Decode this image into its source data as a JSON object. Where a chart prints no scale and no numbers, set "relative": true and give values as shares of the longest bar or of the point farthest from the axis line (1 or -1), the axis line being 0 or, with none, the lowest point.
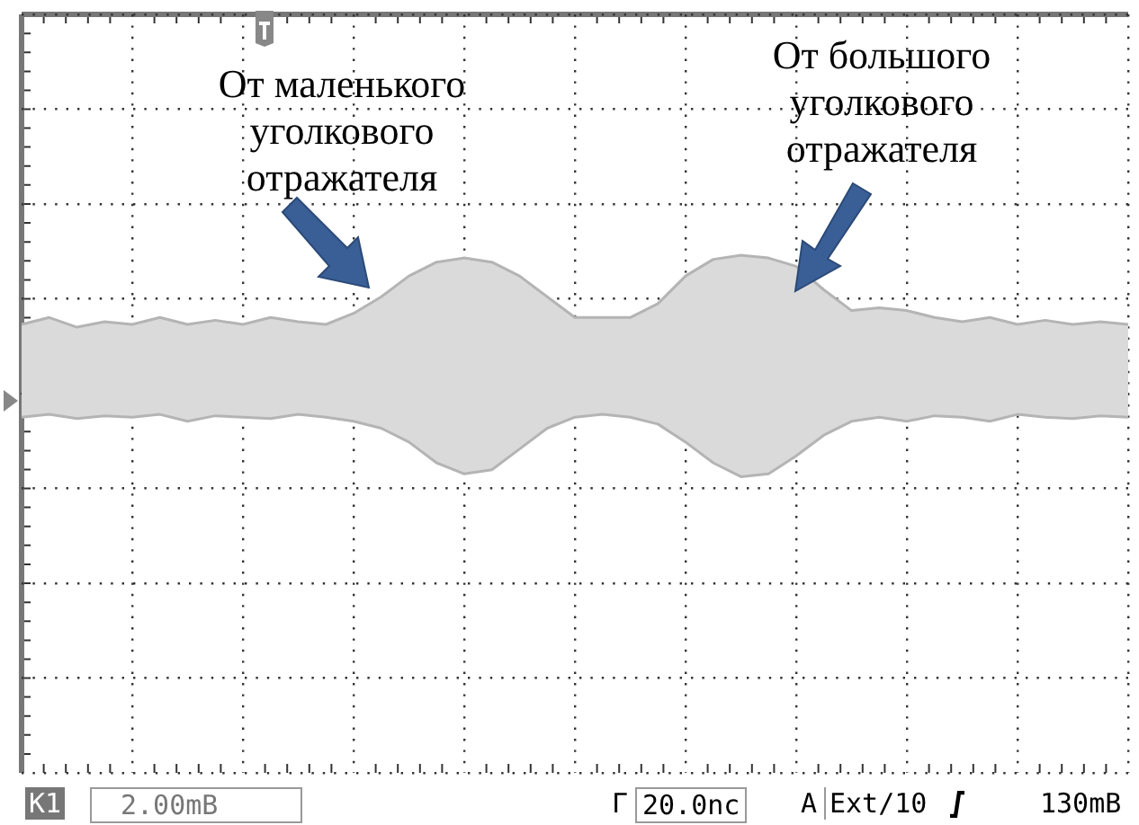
{
  "chart_data": {
    "type": "area",
    "relative": true,
    "grid": true,
    "legend": false,
    "marker": "none",
    "categories": [
      null,
      null,
      null,
      null,
      null,
      null,
      null,
      null,
      null,
      null,
      null,
      null,
      null,
      null,
      null,
      null,
      null,
      null,
      null,
      null,
      null,
      null,
      null,
      null,
      null,
      null,
      null,
      null,
      null,
      null,
      null,
      null,
      null,
      null,
      null,
      null,
      null,
      null,
      null,
      null,
      null
    ],
    "series": [
      {
        "color": "#b4b4b4",
        "values": [
          0.5,
          0.55,
          0.48,
          0.52,
          0.5,
          0.55,
          0.5,
          0.53,
          0.5,
          0.55,
          0.52,
          0.5,
          0.58,
          0.7,
          0.85,
          0.95,
          0.98,
          0.95,
          0.85,
          0.7,
          0.55,
          0.55,
          0.55,
          0.65,
          0.85,
          0.97,
          1,
          0.98,
          0.92,
          0.75,
          0.6,
          0.62,
          0.6,
          0.55,
          0.52,
          0.55,
          0.5,
          0.53,
          0.5,
          0.52,
          0.5
        ]
      },
      {
        "color": "#b4b4b4",
        "values": [
          -0.17,
          -0.15,
          -0.18,
          -0.16,
          -0.17,
          -0.15,
          -0.2,
          -0.16,
          -0.17,
          -0.18,
          -0.15,
          -0.17,
          -0.2,
          -0.25,
          -0.35,
          -0.5,
          -0.58,
          -0.55,
          -0.4,
          -0.25,
          -0.17,
          -0.15,
          -0.17,
          -0.22,
          -0.35,
          -0.5,
          -0.6,
          -0.58,
          -0.45,
          -0.3,
          -0.2,
          -0.17,
          -0.2,
          -0.16,
          -0.17,
          -0.2,
          -0.15,
          -0.17,
          -0.18,
          -0.16,
          -0.17
        ]
      }
    ],
    "annotations": [
      "От маленького уголкового отражателя",
      "От большого уголкового отражателя",
      "K1",
      "2.00mB",
      "Г",
      "20.0nc",
      "A",
      "Ext/10",
      "130mB"
    ]
  }
}
